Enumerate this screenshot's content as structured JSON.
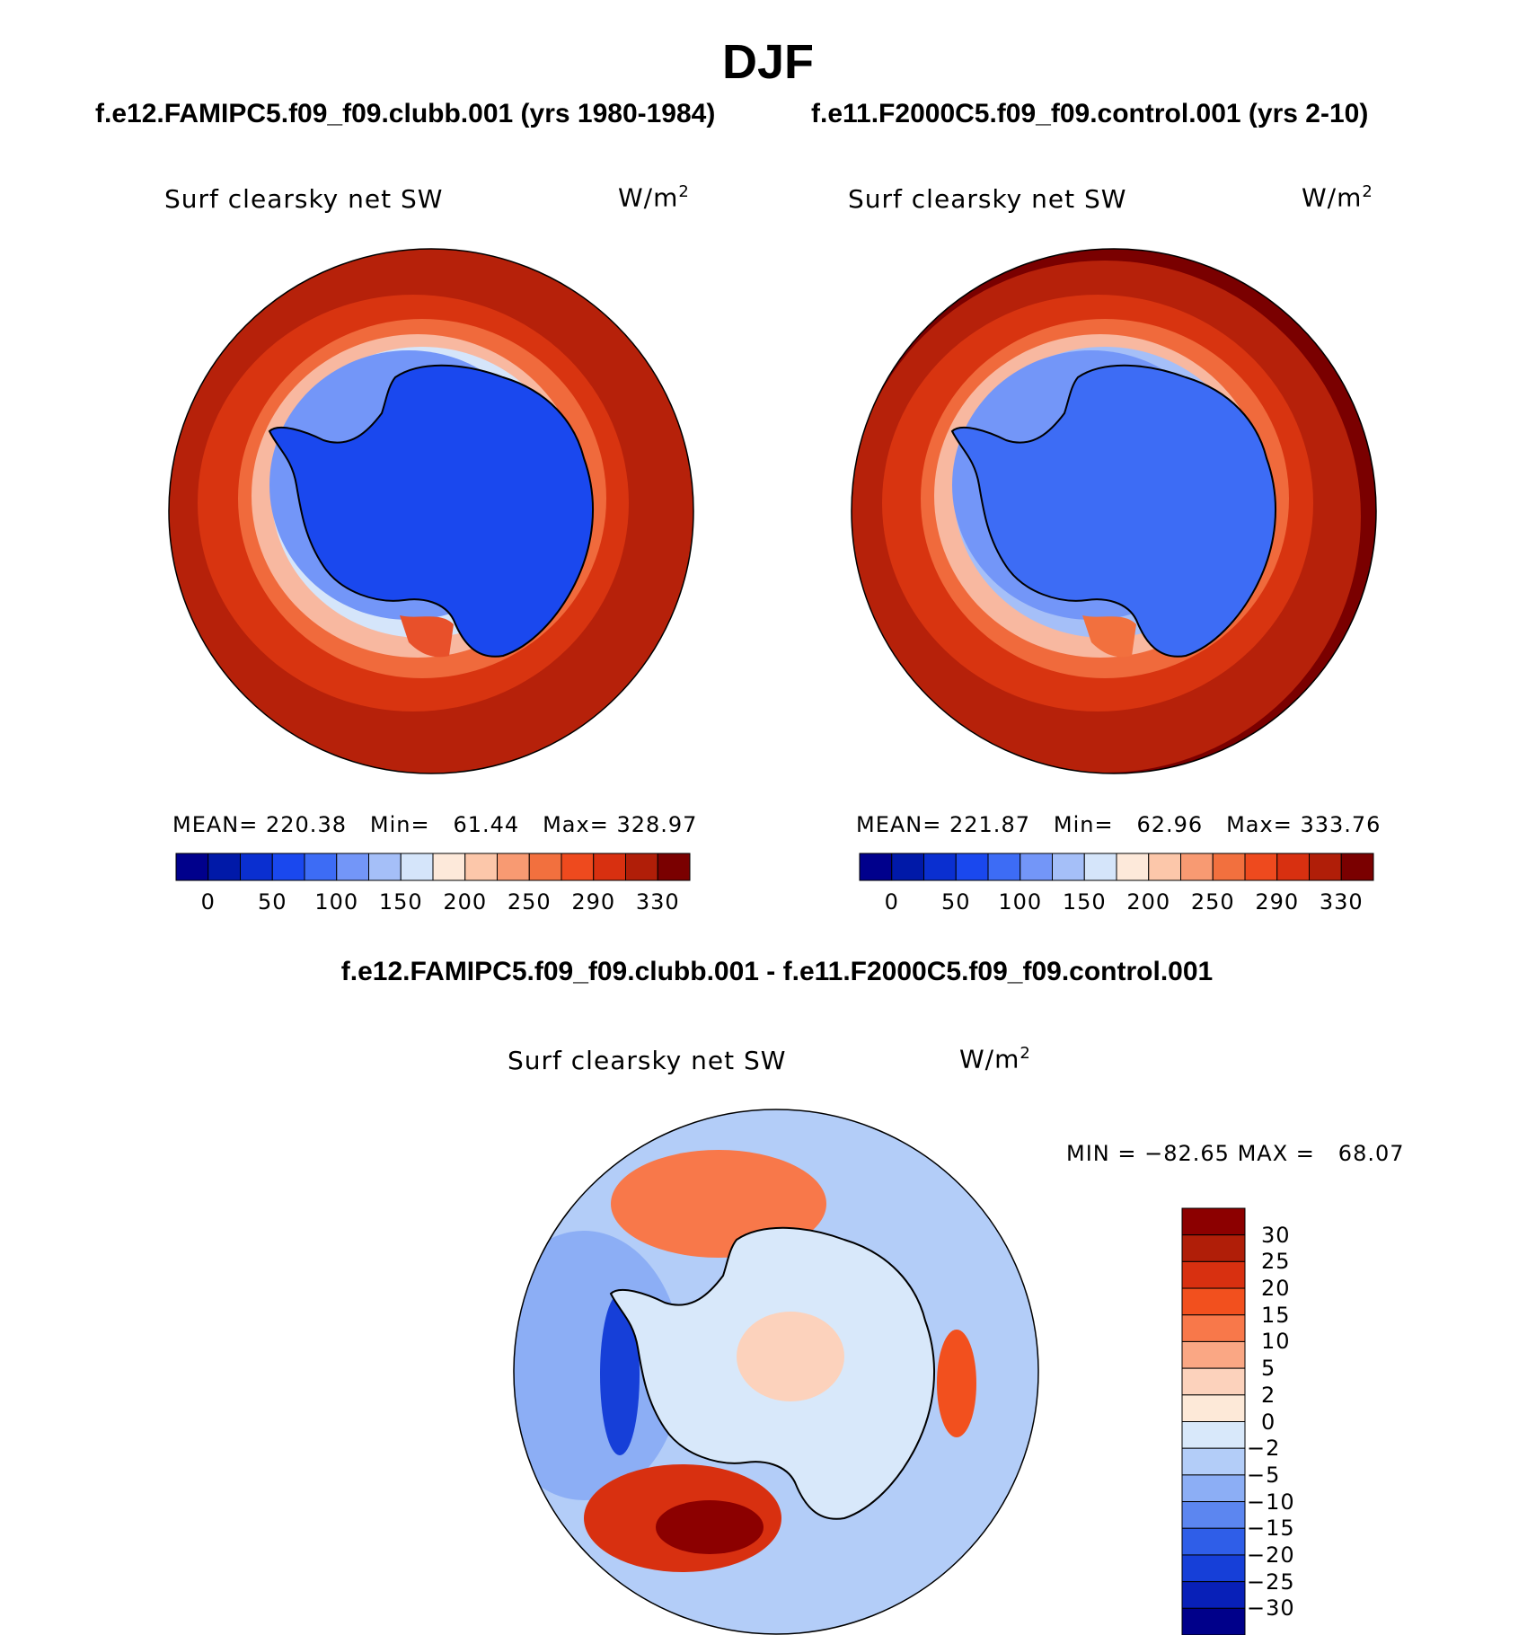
{
  "page_title": "DJF",
  "panels": [
    {
      "case": "f.e12.FAMIPC5.f09_f09.clubb.001 (yrs 1980-1984)",
      "variable": "Surf clearsky net SW",
      "units_base": "W/m",
      "units_exp": "2",
      "mean_label": "MEAN=",
      "mean": "220.38",
      "min_label": "Min=",
      "min": "61.44",
      "max_label": "Max=",
      "max": "328.97"
    },
    {
      "case": "f.e11.F2000C5.f09_f09.control.001 (yrs 2-10)",
      "variable": "Surf clearsky net SW",
      "units_base": "W/m",
      "units_exp": "2",
      "mean_label": "MEAN=",
      "mean": "221.87",
      "min_label": "Min=",
      "min": "62.96",
      "max_label": "Max=",
      "max": "333.76"
    }
  ],
  "field_colorbar": {
    "colors": [
      "#00008c",
      "#0019a8",
      "#0a2fd0",
      "#1a48ee",
      "#3d6cf5",
      "#7396f8",
      "#a5bff8",
      "#d5e5fa",
      "#fde9da",
      "#fcc7aa",
      "#f89a72",
      "#f2703e",
      "#ee4a1e",
      "#d83010",
      "#b01e08",
      "#7a0000"
    ],
    "labels": [
      "0",
      "50",
      "100",
      "150",
      "200",
      "250",
      "290",
      "330"
    ]
  },
  "difference": {
    "title": "f.e12.FAMIPC5.f09_f09.clubb.001 - f.e11.F2000C5.f09_f09.control.001",
    "variable": "Surf clearsky net SW",
    "units_base": "W/m",
    "units_exp": "2",
    "min_label": "MIN =",
    "min": "−82.65",
    "max_label": "MAX =",
    "max": "68.07"
  },
  "diff_colorbar": {
    "colors_top_to_bottom": [
      "#8c0000",
      "#b01e08",
      "#d83010",
      "#f2501e",
      "#f8784a",
      "#faa784",
      "#fcd2bc",
      "#fde9d8",
      "#d8e8fa",
      "#b3cdf8",
      "#8caef5",
      "#5c86f0",
      "#2f5ee8",
      "#163fd8",
      "#0820b8",
      "#00008a"
    ],
    "labels": [
      "30",
      "25",
      "20",
      "15",
      "10",
      "5",
      "2",
      "0",
      "−2",
      "−5",
      "−10",
      "−15",
      "−20",
      "−25",
      "−30"
    ]
  },
  "map_colors": {
    "ocean_far": "#b6210a",
    "ocean_mid": "#d83410",
    "ocean_near": "#f06a3c",
    "sea_ice_edge": "#f8b8a0",
    "transition": "#a8c4f8",
    "ice_shelf": "#3d6cf5",
    "continent": "#1a48ee",
    "diff_background": "#b3cdf8",
    "diff_pacific": "#8caef5"
  }
}
